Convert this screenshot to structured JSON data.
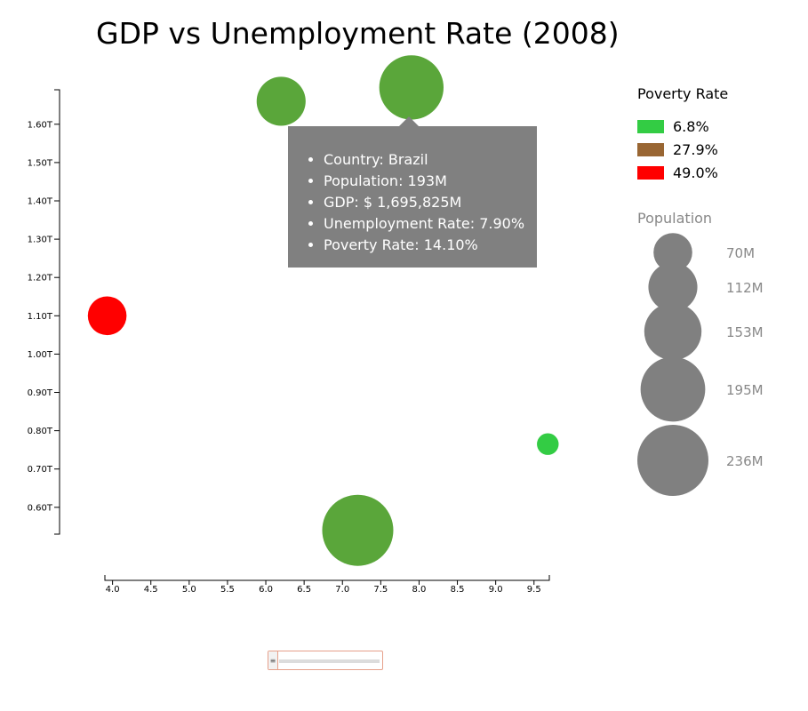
{
  "chart_data": {
    "type": "scatter",
    "title": "GDP vs Unemployment Rate (2008)",
    "xlabel": "",
    "ylabel": "",
    "xlim": [
      3.9,
      9.7
    ],
    "ylim": [
      0.53,
      1.69
    ],
    "x_ticks": [
      4.0,
      4.5,
      5.0,
      5.5,
      6.0,
      6.5,
      7.0,
      7.5,
      8.0,
      8.5,
      9.0,
      9.5
    ],
    "x_tick_labels": [
      "4.0",
      "4.5",
      "5.0",
      "5.5",
      "6.0",
      "6.5",
      "7.0",
      "7.5",
      "8.0",
      "8.5",
      "9.0",
      "9.5"
    ],
    "y_ticks": [
      0.6,
      0.7,
      0.8,
      0.9,
      1.0,
      1.1,
      1.2,
      1.3,
      1.4,
      1.5,
      1.6
    ],
    "y_tick_labels": [
      "0.60T",
      "0.70T",
      "0.80T",
      "0.90T",
      "1.00T",
      "1.10T",
      "1.20T",
      "1.30T",
      "1.40T",
      "1.50T",
      "1.60T"
    ],
    "points": [
      {
        "x": 6.2,
        "y": 1.66,
        "population": 112,
        "color": "#5aa63a"
      },
      {
        "x": 7.9,
        "y": 1.696,
        "population": 193,
        "color": "#5aa63a"
      },
      {
        "x": 3.93,
        "y": 1.1,
        "population": 70,
        "color": "#ff0000"
      },
      {
        "x": 9.68,
        "y": 0.765,
        "population": 22,
        "color": "#33cc44"
      },
      {
        "x": 7.2,
        "y": 0.54,
        "population": 236,
        "color": "#5aa63a"
      }
    ],
    "legend": {
      "color_title": "Poverty Rate",
      "color_items": [
        {
          "label": "6.8%",
          "color": "#33cc44"
        },
        {
          "label": "27.9%",
          "color": "#996633"
        },
        {
          "label": "49.0%",
          "color": "#ff0000"
        }
      ],
      "size_title": "Population",
      "size_items": [
        {
          "label": "70M",
          "value": 70
        },
        {
          "label": "112M",
          "value": 112
        },
        {
          "label": "153M",
          "value": 153
        },
        {
          "label": "195M",
          "value": 195
        },
        {
          "label": "236M",
          "value": 236
        }
      ],
      "size_color": "#808080"
    },
    "grid": false
  },
  "tooltip": {
    "items": [
      "Country: Brazil",
      "Population: 193M",
      "GDP: $ 1,695,825M",
      "Unemployment Rate: 7.90%",
      "Poverty Rate: 14.10%"
    ]
  },
  "slider": {
    "handle_glyph": "≡"
  }
}
